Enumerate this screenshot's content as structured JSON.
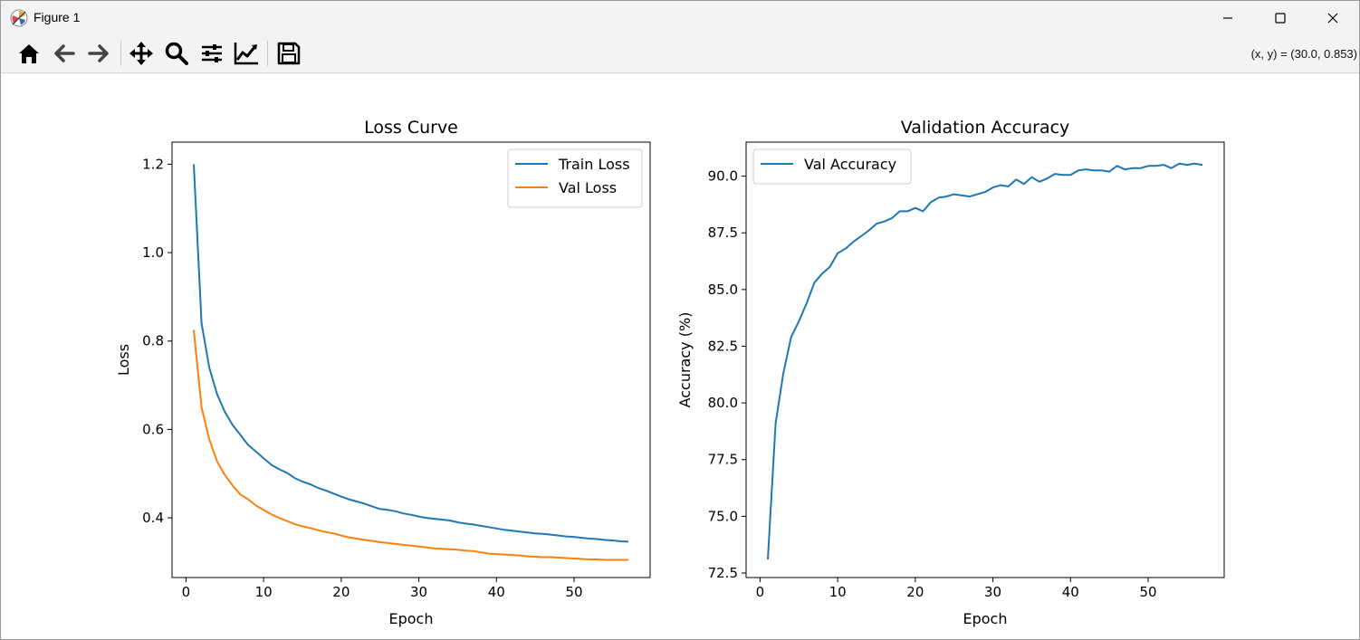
{
  "window": {
    "title": "Figure 1",
    "controls": [
      "minimize",
      "maximize",
      "close"
    ]
  },
  "toolbar": {
    "tools": [
      {
        "name": "home-button",
        "icon": "home-icon"
      },
      {
        "name": "back-button",
        "icon": "arrow-left-icon"
      },
      {
        "name": "forward-button",
        "icon": "arrow-right-icon"
      },
      {
        "name": "pan-button",
        "icon": "move-icon"
      },
      {
        "name": "zoom-button",
        "icon": "magnifier-icon"
      },
      {
        "name": "subplots-button",
        "icon": "sliders-icon"
      },
      {
        "name": "axes-button",
        "icon": "line-chart-icon"
      },
      {
        "name": "save-button",
        "icon": "floppy-disk-icon"
      }
    ],
    "coords": "(x, y) = (30.0, 0.853)"
  },
  "colors": {
    "train": "#1f77b4",
    "val": "#ff7f0e",
    "acc": "#1f77b4"
  },
  "chart_data": [
    {
      "type": "line",
      "title": "Loss Curve",
      "xlabel": "Epoch",
      "ylabel": "Loss",
      "xlim": [
        -1.8,
        59.8
      ],
      "ylim": [
        0.265,
        1.25
      ],
      "xticks": [
        0,
        10,
        20,
        30,
        40,
        50
      ],
      "yticks": [
        0.4,
        0.6,
        0.8,
        1.0,
        1.2
      ],
      "ytick_labels": [
        "0.4",
        "0.6",
        "0.8",
        "1.0",
        "1.2"
      ],
      "legend": "top-right",
      "grid": false,
      "x": [
        1,
        2,
        3,
        4,
        5,
        6,
        7,
        8,
        9,
        10,
        11,
        12,
        13,
        14,
        15,
        16,
        17,
        18,
        19,
        20,
        21,
        22,
        23,
        24,
        25,
        26,
        27,
        28,
        29,
        30,
        31,
        32,
        33,
        34,
        35,
        36,
        37,
        38,
        39,
        40,
        41,
        42,
        43,
        44,
        45,
        46,
        47,
        48,
        49,
        50,
        51,
        52,
        53,
        54,
        55,
        56,
        57
      ],
      "series": [
        {
          "name": "Train Loss",
          "color": "#1f77b4",
          "values": [
            1.2,
            0.84,
            0.74,
            0.68,
            0.64,
            0.61,
            0.588,
            0.565,
            0.55,
            0.535,
            0.52,
            0.51,
            0.502,
            0.49,
            0.482,
            0.476,
            0.468,
            0.462,
            0.455,
            0.448,
            0.442,
            0.437,
            0.432,
            0.426,
            0.42,
            0.418,
            0.415,
            0.41,
            0.407,
            0.403,
            0.4,
            0.398,
            0.396,
            0.394,
            0.39,
            0.387,
            0.385,
            0.382,
            0.379,
            0.376,
            0.373,
            0.371,
            0.369,
            0.367,
            0.365,
            0.364,
            0.362,
            0.36,
            0.358,
            0.357,
            0.355,
            0.353,
            0.352,
            0.35,
            0.349,
            0.347,
            0.346
          ]
        },
        {
          "name": "Val Loss",
          "color": "#ff7f0e",
          "values": [
            0.825,
            0.65,
            0.578,
            0.528,
            0.497,
            0.473,
            0.453,
            0.442,
            0.428,
            0.418,
            0.408,
            0.4,
            0.393,
            0.386,
            0.381,
            0.377,
            0.372,
            0.368,
            0.365,
            0.36,
            0.356,
            0.353,
            0.35,
            0.348,
            0.345,
            0.343,
            0.341,
            0.339,
            0.337,
            0.335,
            0.333,
            0.331,
            0.33,
            0.329,
            0.328,
            0.326,
            0.325,
            0.322,
            0.319,
            0.318,
            0.317,
            0.316,
            0.315,
            0.313,
            0.312,
            0.311,
            0.311,
            0.31,
            0.309,
            0.308,
            0.307,
            0.306,
            0.306,
            0.305,
            0.305,
            0.305,
            0.305
          ]
        }
      ]
    },
    {
      "type": "line",
      "title": "Validation Accuracy",
      "xlabel": "Epoch",
      "ylabel": "Accuracy (%)",
      "xlim": [
        -1.8,
        59.8
      ],
      "ylim": [
        72.3,
        91.5
      ],
      "xticks": [
        0,
        10,
        20,
        30,
        40,
        50
      ],
      "yticks": [
        72.5,
        75.0,
        77.5,
        80.0,
        82.5,
        85.0,
        87.5,
        90.0
      ],
      "ytick_labels": [
        "72.5",
        "75.0",
        "77.5",
        "80.0",
        "82.5",
        "85.0",
        "87.5",
        "90.0"
      ],
      "legend": "top-left",
      "grid": false,
      "x": [
        1,
        2,
        3,
        4,
        5,
        6,
        7,
        8,
        9,
        10,
        11,
        12,
        13,
        14,
        15,
        16,
        17,
        18,
        19,
        20,
        21,
        22,
        23,
        24,
        25,
        26,
        27,
        28,
        29,
        30,
        31,
        32,
        33,
        34,
        35,
        36,
        37,
        38,
        39,
        40,
        41,
        42,
        43,
        44,
        45,
        46,
        47,
        48,
        49,
        50,
        51,
        52,
        53,
        54,
        55,
        56,
        57
      ],
      "series": [
        {
          "name": "Val Accuracy",
          "color": "#1f77b4",
          "values": [
            73.1,
            79.1,
            81.3,
            82.9,
            83.6,
            84.4,
            85.3,
            85.7,
            86.0,
            86.6,
            86.8,
            87.1,
            87.35,
            87.6,
            87.9,
            88.0,
            88.15,
            88.45,
            88.45,
            88.6,
            88.45,
            88.85,
            89.05,
            89.1,
            89.2,
            89.15,
            89.1,
            89.2,
            89.3,
            89.5,
            89.6,
            89.55,
            89.85,
            89.65,
            89.95,
            89.75,
            89.9,
            90.1,
            90.05,
            90.05,
            90.25,
            90.3,
            90.25,
            90.25,
            90.2,
            90.45,
            90.3,
            90.35,
            90.35,
            90.45,
            90.45,
            90.5,
            90.35,
            90.55,
            90.5,
            90.55,
            90.5
          ]
        }
      ]
    }
  ]
}
